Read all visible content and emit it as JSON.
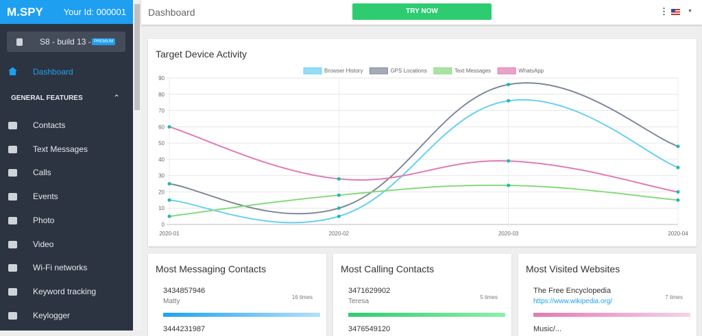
{
  "header": {
    "brand": "M.SPY",
    "user_id": "Your Id: 000001"
  },
  "device": {
    "name": "S8 - build 13 -...",
    "badge": "PREMIUM"
  },
  "nav": {
    "active": "Dashboard",
    "section": "GENERAL FEATURES",
    "items": [
      "Contacts",
      "Text Messages",
      "Calls",
      "Events",
      "Photo",
      "Video",
      "Wi-Fi networks",
      "Keyword tracking",
      "Keylogger"
    ]
  },
  "topbar": {
    "title": "Dashboard",
    "button": "TRY NOW"
  },
  "chart_data": {
    "type": "line",
    "title": "Target Device Activity",
    "categories": [
      "2020-01",
      "2020-02",
      "2020-03",
      "2020-04"
    ],
    "series": [
      {
        "name": "Browser History",
        "color": "#67cff2",
        "values": [
          15,
          5,
          76,
          35
        ]
      },
      {
        "name": "GPS Locations",
        "color": "#7d8799",
        "values": [
          25,
          10,
          86,
          48
        ]
      },
      {
        "name": "Text Messages",
        "color": "#86d97c",
        "values": [
          5,
          18,
          24,
          15
        ]
      },
      {
        "name": "WhatsApp",
        "color": "#e07bb4",
        "values": [
          60,
          28,
          39,
          20
        ]
      }
    ],
    "point_color": "#1fb8b0",
    "ylim": [
      0,
      90
    ],
    "yticks": [
      0,
      10,
      20,
      30,
      40,
      50,
      60,
      70,
      80,
      90
    ],
    "grid": true,
    "legend": "top"
  },
  "cards": [
    {
      "title": "Most Messaging Contacts",
      "entries": [
        {
          "label": "3434857946",
          "sub": "Matty",
          "count": "16 times"
        },
        {
          "label": "3444231987"
        }
      ]
    },
    {
      "title": "Most Calling Contacts",
      "entries": [
        {
          "label": "3471629902",
          "sub": "Teresa",
          "count": "5 times"
        },
        {
          "label": "3476549120"
        }
      ]
    },
    {
      "title": "Most Visited Websites",
      "entries": [
        {
          "label": "The Free Encyclopedia",
          "sub": "https://www.wikipedia.org/",
          "count": "7 times"
        },
        {
          "label": "Music/..."
        }
      ]
    }
  ]
}
